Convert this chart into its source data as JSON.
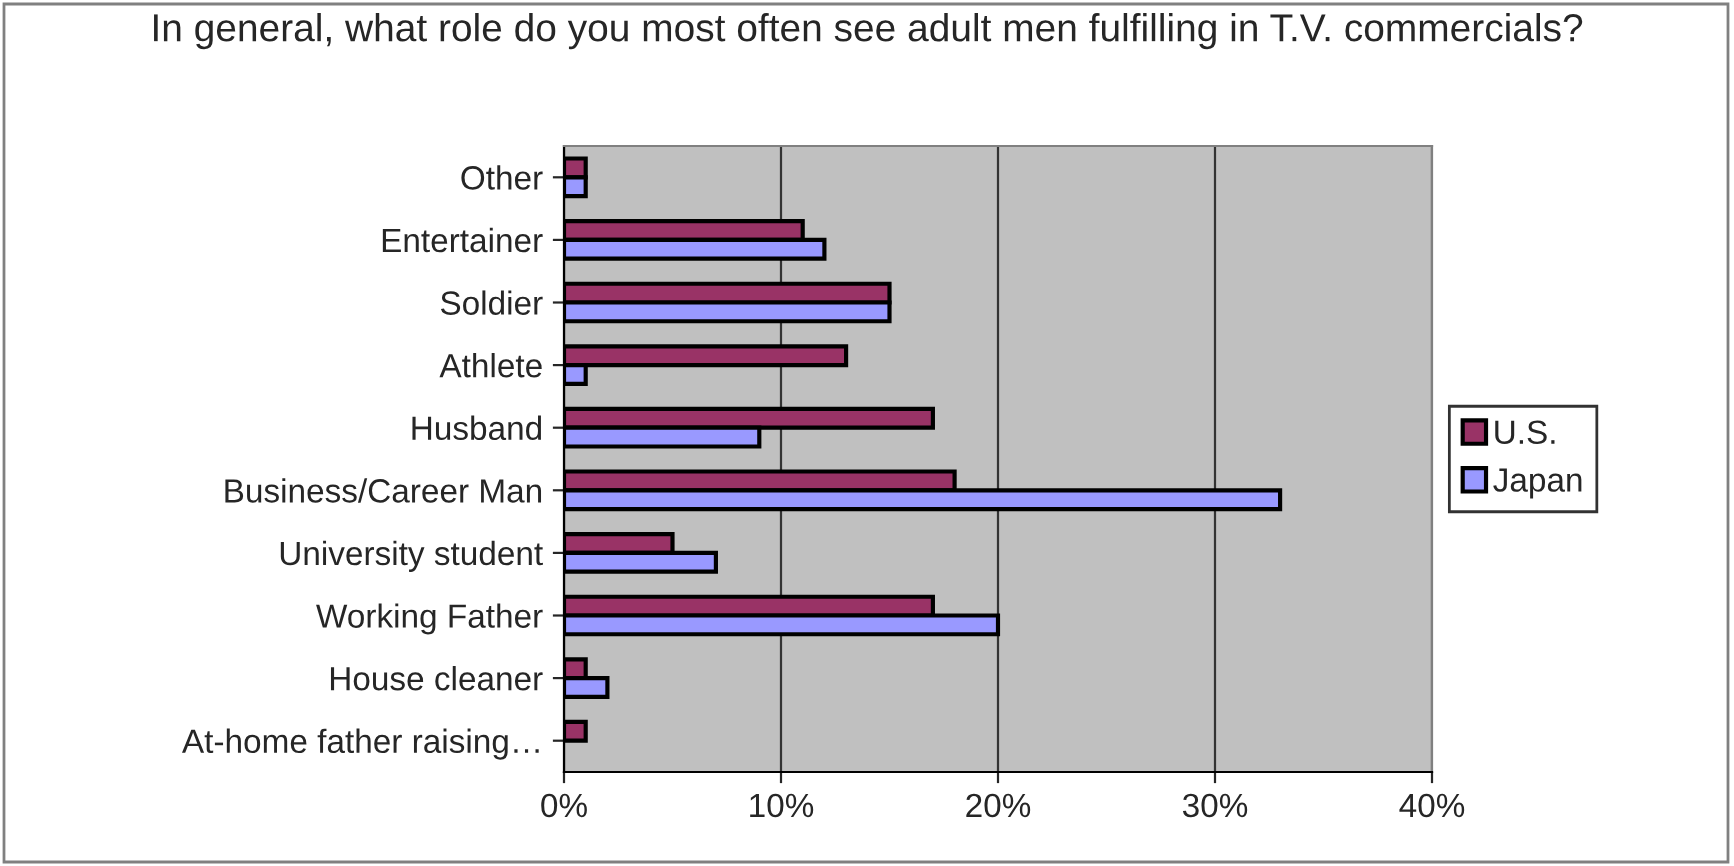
{
  "chart_data": {
    "type": "bar",
    "orientation": "horizontal",
    "title": "In general, what role do you most often see adult men fulfilling in T.V. commercials?",
    "categories": [
      "Other",
      "Entertainer",
      "Soldier",
      "Athlete",
      "Husband",
      "Business/Career Man",
      "University student",
      "Working Father",
      "House cleaner",
      "At-home father raising…"
    ],
    "series": [
      {
        "name": "U.S.",
        "color": "#993366",
        "values": [
          1,
          11,
          15,
          13,
          17,
          18,
          5,
          17,
          1,
          1
        ]
      },
      {
        "name": "Japan",
        "color": "#9999ff",
        "values": [
          1,
          12,
          15,
          1,
          9,
          33,
          7,
          20,
          2,
          null
        ]
      }
    ],
    "xlim": [
      0,
      40
    ],
    "xticks": [
      {
        "value": 0,
        "label": "0%"
      },
      {
        "value": 10,
        "label": "10%"
      },
      {
        "value": 20,
        "label": "20%"
      },
      {
        "value": 30,
        "label": "30%"
      },
      {
        "value": 40,
        "label": "40%"
      }
    ],
    "grid": "x",
    "legend": "right"
  }
}
